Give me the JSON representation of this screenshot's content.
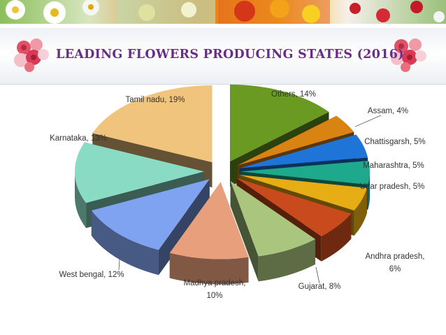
{
  "slide": {
    "title": "LEADING FLOWERS PRODUCING STATES (2016)"
  },
  "chart_data": {
    "type": "pie",
    "title": "",
    "slices": [
      {
        "label": "Others",
        "value": 14,
        "display": "Others, 14%",
        "color": "#6b9a22"
      },
      {
        "label": "Assam",
        "value": 4,
        "display": "Assam, 4%",
        "color": "#d98312"
      },
      {
        "label": "Chattisgarsh",
        "value": 5,
        "display": "Chattisgarsh, 5%",
        "color": "#1f74d8"
      },
      {
        "label": "Maharashtra",
        "value": 5,
        "display": "Maharashtra, 5%",
        "color": "#1ea98c"
      },
      {
        "label": "Uttar pradesh",
        "value": 5,
        "display": "Uttar pradesh, 5%",
        "color": "#e6ad14"
      },
      {
        "label": "Andhra pradesh",
        "value": 6,
        "display": "Andhra pradesh, 6%",
        "color": "#c94b1d"
      },
      {
        "label": "Gujarat",
        "value": 8,
        "display": "Gujarat, 8%",
        "color": "#a9c57e"
      },
      {
        "label": "Madhya pradesh",
        "value": 10,
        "display": "Madhya pradesh, 10%",
        "color": "#e8a07c"
      },
      {
        "label": "West bengal",
        "value": 12,
        "display": "West bengal, 12%",
        "color": "#7fa3f0"
      },
      {
        "label": "Karnataka",
        "value": 13,
        "display": "Karnataka, 13%",
        "color": "#8adbc4"
      },
      {
        "label": "Tamil nadu",
        "value": 19,
        "display": "Tamil nadu, 19%",
        "color": "#f0c47c"
      }
    ]
  }
}
